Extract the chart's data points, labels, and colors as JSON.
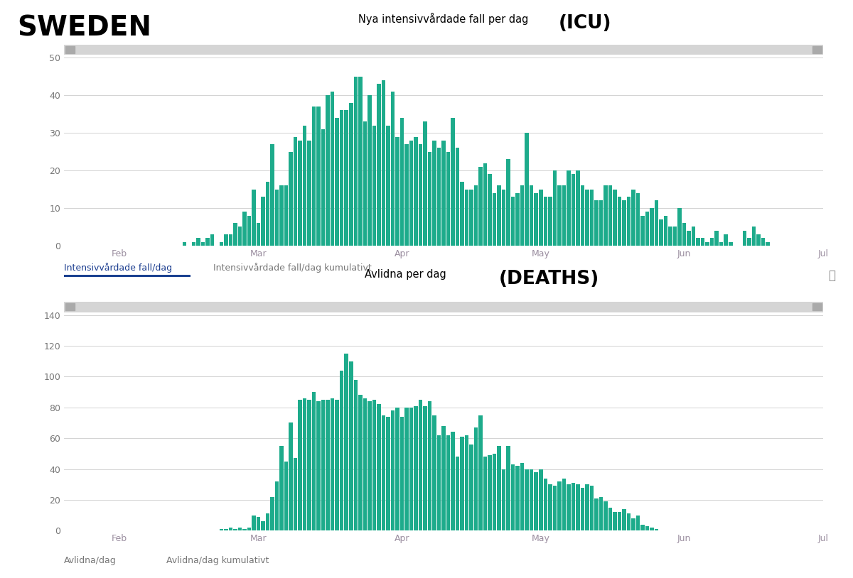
{
  "icu_title": "Nya intensivvårdade fall per dag",
  "icu_title2": "(ICU)",
  "deaths_title": "Avlidna per dag",
  "deaths_title2": "(DEATHS)",
  "sweden_label": "SWEDEN",
  "icu_tab1": "Intensivvårdade fall/dag",
  "icu_tab2": "Intensivvårdade fall/dag kumulativt",
  "deaths_tab1": "Avlidna/dag",
  "deaths_tab2": "Avlidna/dag kumulativt",
  "bar_color": "#1dab8b",
  "bg_color": "#ffffff",
  "plot_bg": "#ffffff",
  "scrollbar_color": "#d5d5d5",
  "grid_color": "#cccccc",
  "icu_ylim": [
    0,
    50
  ],
  "deaths_ylim": [
    0,
    140
  ],
  "icu_yticks": [
    0,
    10,
    20,
    30,
    40,
    50
  ],
  "deaths_yticks": [
    0,
    20,
    40,
    60,
    80,
    100,
    120,
    140
  ],
  "x_tick_labels": [
    "Feb",
    "Mar",
    "Apr",
    "May",
    "Jun",
    "Jul"
  ],
  "icu_xtick_positions": [
    11,
    41,
    72,
    102,
    133,
    163
  ],
  "icu_values": [
    0,
    0,
    0,
    0,
    0,
    0,
    0,
    0,
    0,
    0,
    0,
    0,
    0,
    0,
    0,
    0,
    0,
    0,
    0,
    0,
    0,
    0,
    0,
    0,
    0,
    1,
    0,
    1,
    2,
    1,
    2,
    3,
    0,
    1,
    3,
    3,
    6,
    5,
    9,
    8,
    15,
    6,
    13,
    17,
    27,
    15,
    16,
    16,
    25,
    29,
    28,
    32,
    28,
    37,
    37,
    31,
    40,
    41,
    34,
    36,
    36,
    38,
    45,
    45,
    33,
    40,
    32,
    43,
    44,
    32,
    41,
    29,
    34,
    27,
    28,
    29,
    27,
    33,
    25,
    28,
    26,
    28,
    25,
    34,
    26,
    17,
    15,
    15,
    16,
    21,
    22,
    19,
    14,
    16,
    15,
    23,
    13,
    14,
    16,
    30,
    16,
    14,
    15,
    13,
    13,
    20,
    16,
    16,
    20,
    19,
    20,
    16,
    15,
    15,
    12,
    12,
    16,
    16,
    15,
    13,
    12,
    13,
    15,
    14,
    8,
    9,
    10,
    12,
    7,
    8,
    5,
    5,
    10,
    6,
    4,
    5,
    2,
    2,
    1,
    2,
    4,
    1,
    3,
    1,
    0,
    0,
    4,
    2,
    5,
    3,
    2,
    1
  ],
  "deaths_values": [
    0,
    0,
    0,
    0,
    0,
    0,
    0,
    0,
    0,
    0,
    0,
    0,
    0,
    0,
    0,
    0,
    0,
    0,
    0,
    0,
    0,
    0,
    0,
    0,
    0,
    0,
    0,
    0,
    0,
    0,
    0,
    0,
    0,
    1,
    1,
    2,
    1,
    2,
    1,
    2,
    10,
    9,
    6,
    11,
    22,
    32,
    55,
    45,
    70,
    47,
    85,
    86,
    85,
    90,
    84,
    85,
    85,
    86,
    85,
    104,
    115,
    110,
    98,
    88,
    86,
    84,
    85,
    82,
    75,
    74,
    78,
    80,
    74,
    80,
    80,
    81,
    85,
    81,
    84,
    75,
    62,
    68,
    62,
    64,
    48,
    61,
    62,
    56,
    67,
    75,
    48,
    49,
    50,
    55,
    40,
    55,
    43,
    42,
    44,
    40,
    40,
    38,
    40,
    34,
    30,
    29,
    32,
    34,
    30,
    31,
    30,
    28,
    30,
    29,
    21,
    22,
    19,
    15,
    12,
    12,
    14,
    11,
    8,
    10,
    4,
    3,
    2,
    1
  ]
}
